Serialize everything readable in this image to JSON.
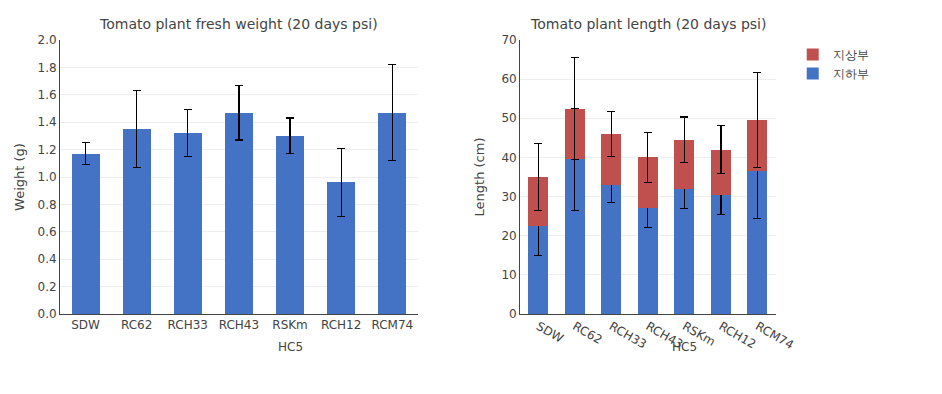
{
  "chart_data": [
    {
      "type": "bar",
      "title": "Tomato plant fresh weight (20 days psi)",
      "ylabel": "Weight (g)",
      "categories": [
        "SDW",
        "RC62",
        "RCH33",
        "RCH43",
        "RSKm",
        "RCH12",
        "RCM74"
      ],
      "values": [
        1.17,
        1.35,
        1.32,
        1.47,
        1.3,
        0.96,
        1.47
      ],
      "errors": [
        0.08,
        0.28,
        0.17,
        0.2,
        0.13,
        0.25,
        0.35
      ],
      "color": "#4472C4",
      "ylim": [
        0,
        2
      ],
      "yticks": [
        {
          "value": 0,
          "label": "0.0"
        },
        0.2,
        0.4,
        0.6,
        0.8,
        {
          "value": 1.0,
          "label": "1.0"
        },
        1.2,
        1.4,
        1.6,
        1.8,
        {
          "value": 2.0,
          "label": "2.0"
        }
      ],
      "grid": true,
      "annotations": [
        {
          "text": "HC5",
          "category": "RSKm"
        }
      ]
    },
    {
      "type": "bar",
      "title": "Tomato plant length (20 days psi)",
      "ylabel": "Length (cm)",
      "categories": [
        "SDW",
        "RC62",
        "RCH33",
        "RCH43",
        "RSKm",
        "RCH12",
        "RCM74"
      ],
      "stacked": true,
      "series": [
        {
          "name": "지하부",
          "color": "#4472C4",
          "values": [
            22.5,
            39.5,
            33.0,
            27.0,
            32.0,
            30.5,
            36.5
          ],
          "errors": [
            7.5,
            13.0,
            4.5,
            5.0,
            5.0,
            5.0,
            12.0
          ]
        },
        {
          "name": "지상부",
          "color": "#C0504D",
          "values": [
            12.5,
            13.0,
            13.0,
            13.0,
            12.5,
            11.5,
            13.0
          ],
          "errors": [
            8.5,
            13.0862523,
            5.7008771,
            6.4031242,
            5.8309519,
            6.1032778,
            12.1655251
          ]
        }
      ],
      "ylim": [
        0,
        70
      ],
      "yticks": [
        0,
        10,
        20,
        30,
        40,
        50,
        60,
        70
      ],
      "grid": true,
      "legend": "upper right",
      "annotations": [
        {
          "text": "HC5",
          "category": "RSKm"
        }
      ]
    }
  ]
}
